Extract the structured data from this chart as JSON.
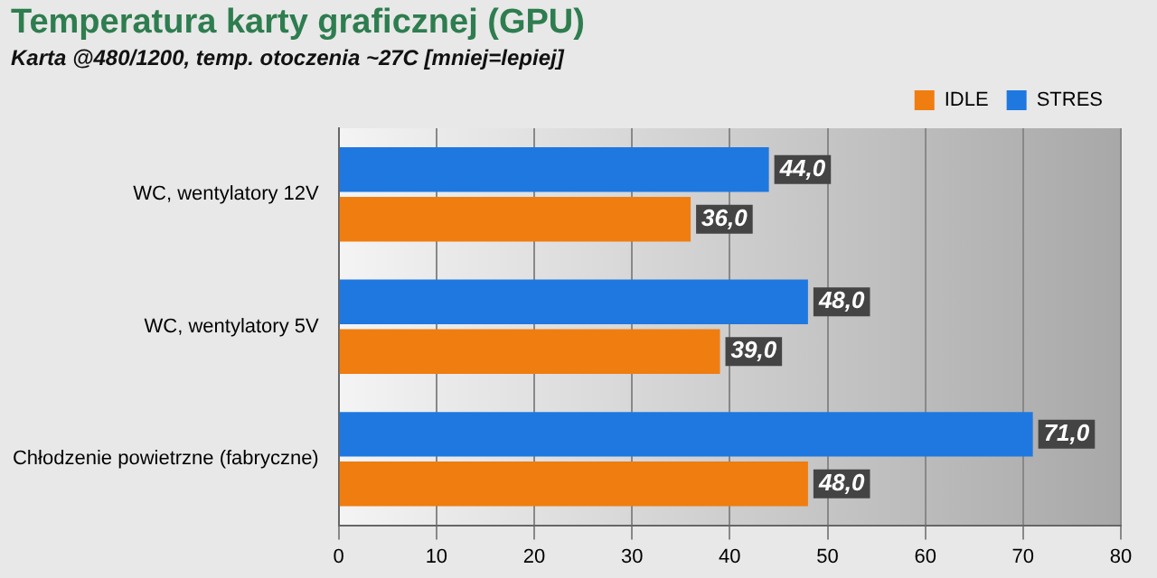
{
  "chart_data": {
    "type": "bar",
    "orientation": "horizontal",
    "title": "Temperatura karty graficznej (GPU)",
    "subtitle": "Karta @480/1200, temp. otoczenia ~27C [mniej=lepiej]",
    "categories": [
      "WC, wentylatory 12V",
      "WC, wentylatory 5V",
      "Chłodzenie powietrzne (fabryczne)"
    ],
    "series": [
      {
        "name": "IDLE",
        "color": "#f07d10",
        "values": [
          36,
          39,
          48
        ],
        "value_labels": [
          "36,0",
          "39,0",
          "48,0"
        ]
      },
      {
        "name": "STRES",
        "color": "#1e78e0",
        "values": [
          44,
          48,
          71
        ],
        "value_labels": [
          "44,0",
          "48,0",
          "71,0"
        ]
      }
    ],
    "xlim": [
      0,
      80
    ],
    "xticks": [
      0,
      10,
      20,
      30,
      40,
      50,
      60,
      70,
      80
    ],
    "grid": "x",
    "legend": "top right"
  }
}
